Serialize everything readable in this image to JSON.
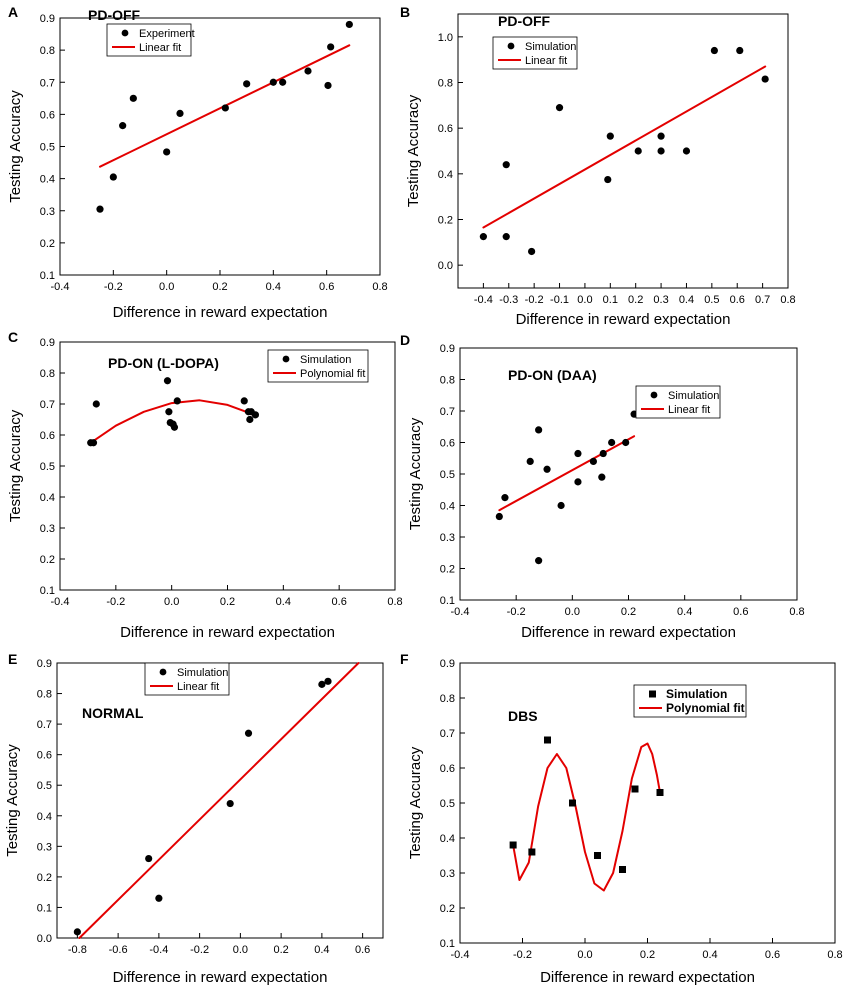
{
  "chart_data": [
    {
      "type": "scatter",
      "letter": "A",
      "title": "PD-OFF",
      "xlabel": "Difference in reward expectation",
      "ylabel": "Testing Accuracy",
      "xlim": [
        -0.4,
        0.8
      ],
      "ylim": [
        0.1,
        0.9
      ],
      "xticks": [
        -0.4,
        -0.2,
        0.0,
        0.2,
        0.4,
        0.6,
        0.8
      ],
      "yticks": [
        0.1,
        0.2,
        0.3,
        0.4,
        0.5,
        0.6,
        0.7,
        0.8,
        0.9
      ],
      "xtick_labels": [
        "-0.4",
        "-0.2",
        "0.0",
        "0.2",
        "0.4",
        "0.6",
        "0.8"
      ],
      "ytick_labels": [
        "0.1",
        "0.2",
        "0.3",
        "0.4",
        "0.5",
        "0.6",
        "0.7",
        "0.8",
        "0.9"
      ],
      "legend": [
        "Experiment",
        "Linear fit"
      ],
      "marker": "circle",
      "fit": "linear",
      "x": [
        -0.25,
        -0.2,
        -0.165,
        -0.125,
        0.0,
        0.05,
        0.22,
        0.3,
        0.4,
        0.435,
        0.53,
        0.605,
        0.615,
        0.685
      ],
      "y": [
        0.305,
        0.405,
        0.565,
        0.65,
        0.483,
        0.603,
        0.62,
        0.695,
        0.7,
        0.7,
        0.735,
        0.69,
        0.81,
        0.88
      ],
      "fit_x": [
        -0.25,
        0.685
      ],
      "fit_y": [
        0.437,
        0.815
      ]
    },
    {
      "type": "scatter",
      "letter": "B",
      "title": "PD-OFF",
      "xlabel": "Difference in reward expectation",
      "ylabel": "Testing Accuracy",
      "xlim": [
        -0.5,
        0.8
      ],
      "ylim": [
        -0.1,
        1.1
      ],
      "xticks": [
        -0.4,
        -0.3,
        -0.2,
        -0.1,
        0.0,
        0.1,
        0.2,
        0.3,
        0.4,
        0.5,
        0.6,
        0.7,
        0.8
      ],
      "yticks": [
        0.0,
        0.2,
        0.4,
        0.6,
        0.8,
        1.0
      ],
      "xtick_labels": [
        "-0.4",
        "-0.3",
        "-0.2",
        "-0.1",
        "0.0",
        "0.1",
        "0.2",
        "0.3",
        "0.4",
        "0.5",
        "0.6",
        "0.7",
        "0.8"
      ],
      "ytick_labels": [
        "0.0",
        "0.2",
        "0.4",
        "0.6",
        "0.8",
        "1.0"
      ],
      "legend": [
        "Simulation",
        "Linear fit"
      ],
      "marker": "circle",
      "fit": "linear",
      "x": [
        -0.4,
        -0.31,
        -0.31,
        -0.21,
        -0.1,
        0.09,
        0.1,
        0.21,
        0.3,
        0.3,
        0.4,
        0.51,
        0.61,
        0.71
      ],
      "y": [
        0.125,
        0.44,
        0.125,
        0.06,
        0.69,
        0.375,
        0.565,
        0.5,
        0.5,
        0.565,
        0.5,
        0.94,
        0.94,
        0.815
      ],
      "fit_x": [
        -0.4,
        0.71
      ],
      "fit_y": [
        0.165,
        0.87
      ]
    },
    {
      "type": "scatter",
      "letter": "C",
      "title": "PD-ON (L-DOPA)",
      "xlabel": "Difference in reward expectation",
      "ylabel": "Testing Accuracy",
      "xlim": [
        -0.4,
        0.8
      ],
      "ylim": [
        0.1,
        0.9
      ],
      "xticks": [
        -0.4,
        -0.2,
        0.0,
        0.2,
        0.4,
        0.6,
        0.8
      ],
      "yticks": [
        0.1,
        0.2,
        0.3,
        0.4,
        0.5,
        0.6,
        0.7,
        0.8,
        0.9
      ],
      "xtick_labels": [
        "-0.4",
        "-0.2",
        "0.0",
        "0.2",
        "0.4",
        "0.6",
        "0.8"
      ],
      "ytick_labels": [
        "0.1",
        "0.2",
        "0.3",
        "0.4",
        "0.5",
        "0.6",
        "0.7",
        "0.8",
        "0.9"
      ],
      "legend": [
        "Simulation",
        "Polynomial fit"
      ],
      "marker": "circle",
      "fit": "polynomial",
      "x": [
        -0.29,
        -0.28,
        -0.27,
        -0.015,
        -0.01,
        -0.005,
        0.005,
        0.01,
        0.02,
        0.26,
        0.275,
        0.28,
        0.285,
        0.3
      ],
      "y": [
        0.575,
        0.575,
        0.7,
        0.775,
        0.675,
        0.64,
        0.635,
        0.625,
        0.71,
        0.71,
        0.675,
        0.65,
        0.675,
        0.665
      ],
      "fit_x": [
        -0.29,
        -0.2,
        -0.1,
        0.0,
        0.1,
        0.2,
        0.26,
        0.3
      ],
      "fit_y": [
        0.575,
        0.63,
        0.675,
        0.703,
        0.712,
        0.697,
        0.677,
        0.662
      ]
    },
    {
      "type": "scatter",
      "letter": "D",
      "title": "PD-ON (DAA)",
      "xlabel": "Difference in reward expectation",
      "ylabel": "Testing Accuracy",
      "xlim": [
        -0.4,
        0.8
      ],
      "ylim": [
        0.1,
        0.9
      ],
      "xticks": [
        -0.4,
        -0.2,
        0.0,
        0.2,
        0.4,
        0.6,
        0.8
      ],
      "yticks": [
        0.1,
        0.2,
        0.3,
        0.4,
        0.5,
        0.6,
        0.7,
        0.8,
        0.9
      ],
      "xtick_labels": [
        "-0.4",
        "-0.2",
        "0.0",
        "0.2",
        "0.4",
        "0.6",
        "0.8"
      ],
      "ytick_labels": [
        "0.1",
        "0.2",
        "0.3",
        "0.4",
        "0.5",
        "0.6",
        "0.7",
        "0.8",
        "0.9"
      ],
      "legend": [
        "Simulation",
        "Linear fit"
      ],
      "marker": "circle",
      "fit": "linear",
      "x": [
        -0.26,
        -0.24,
        -0.15,
        -0.12,
        -0.12,
        -0.09,
        -0.04,
        0.02,
        0.02,
        0.075,
        0.105,
        0.11,
        0.14,
        0.19,
        0.22
      ],
      "y": [
        0.365,
        0.425,
        0.54,
        0.64,
        0.225,
        0.515,
        0.4,
        0.565,
        0.475,
        0.54,
        0.49,
        0.565,
        0.6,
        0.6,
        0.69
      ],
      "fit_x": [
        -0.26,
        0.22
      ],
      "fit_y": [
        0.385,
        0.62
      ]
    },
    {
      "type": "scatter",
      "letter": "E",
      "title": "NORMAL",
      "xlabel": "Difference in reward expectation",
      "ylabel": "Testing Accuracy",
      "xlim": [
        -0.9,
        0.7
      ],
      "ylim": [
        0.0,
        0.9
      ],
      "xticks": [
        -0.8,
        -0.6,
        -0.4,
        -0.2,
        0.0,
        0.2,
        0.4,
        0.6
      ],
      "yticks": [
        0.0,
        0.1,
        0.2,
        0.3,
        0.4,
        0.5,
        0.6,
        0.7,
        0.8,
        0.9
      ],
      "xtick_labels": [
        "-0.8",
        "-0.6",
        "-0.4",
        "-0.2",
        "0.0",
        "0.2",
        "0.4",
        "0.6"
      ],
      "ytick_labels": [
        "0.0",
        "0.1",
        "0.2",
        "0.3",
        "0.4",
        "0.5",
        "0.6",
        "0.7",
        "0.8",
        "0.9"
      ],
      "legend": [
        "Simulation",
        "Linear fit"
      ],
      "marker": "circle",
      "fit": "linear",
      "x": [
        -0.8,
        -0.45,
        -0.4,
        -0.05,
        0.04,
        0.4,
        0.43
      ],
      "y": [
        0.02,
        0.26,
        0.13,
        0.44,
        0.67,
        0.83,
        0.84
      ],
      "fit_x": [
        -0.79,
        0.58
      ],
      "fit_y": [
        0.0,
        0.9
      ]
    },
    {
      "type": "scatter",
      "letter": "F",
      "title": "DBS",
      "xlabel": "Difference in reward expectation",
      "ylabel": "Testing Accuracy",
      "xlim": [
        -0.4,
        0.8
      ],
      "ylim": [
        0.1,
        0.9
      ],
      "xticks": [
        -0.4,
        -0.2,
        0.0,
        0.2,
        0.4,
        0.6,
        0.8
      ],
      "yticks": [
        0.1,
        0.2,
        0.3,
        0.4,
        0.5,
        0.6,
        0.7,
        0.8,
        0.9
      ],
      "xtick_labels": [
        "-0.4",
        "-0.2",
        "0.0",
        "0.2",
        "0.4",
        "0.6",
        "0.8"
      ],
      "ytick_labels": [
        "0.1",
        "0.2",
        "0.3",
        "0.4",
        "0.5",
        "0.6",
        "0.7",
        "0.8",
        "0.9"
      ],
      "legend": [
        "Simulation",
        "Polynomial fit"
      ],
      "marker": "square",
      "fit": "polynomial",
      "x": [
        -0.23,
        -0.17,
        -0.12,
        -0.04,
        0.04,
        0.12,
        0.16,
        0.24
      ],
      "y": [
        0.38,
        0.36,
        0.68,
        0.5,
        0.35,
        0.31,
        0.54,
        0.53
      ],
      "fit_x": [
        -0.23,
        -0.21,
        -0.18,
        -0.15,
        -0.12,
        -0.09,
        -0.06,
        -0.03,
        0.0,
        0.03,
        0.06,
        0.09,
        0.12,
        0.15,
        0.18,
        0.2,
        0.215,
        0.23,
        0.24
      ],
      "fit_y": [
        0.38,
        0.28,
        0.33,
        0.49,
        0.6,
        0.64,
        0.6,
        0.49,
        0.36,
        0.27,
        0.25,
        0.3,
        0.42,
        0.57,
        0.66,
        0.67,
        0.64,
        0.58,
        0.53
      ]
    }
  ]
}
